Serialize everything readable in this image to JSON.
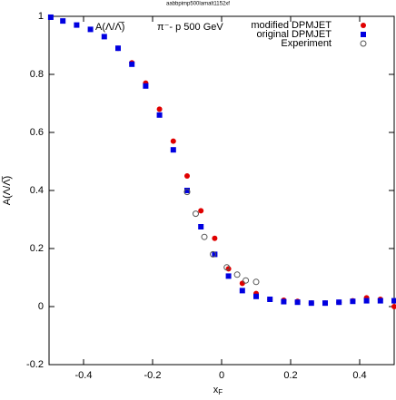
{
  "chart_data": {
    "type": "scatter",
    "title": "aabbpimp500lamalt1152xf",
    "annotations": [
      "A(Λ/Λ̅)",
      "π⁻- p 500 GeV"
    ],
    "xlabel": {
      "main": "x",
      "sub": "F"
    },
    "ylabel": "A(Λ/Λ̅)",
    "xlim": [
      -0.5,
      0.5
    ],
    "ylim": [
      -0.2,
      1
    ],
    "xticks": [
      -0.4,
      -0.2,
      0,
      0.2,
      0.4
    ],
    "yticks": [
      -0.2,
      0,
      0.2,
      0.4,
      0.6,
      0.8,
      1
    ],
    "grid": false,
    "legend": "top-right",
    "series": [
      {
        "name": "modified DPMJET",
        "color": "#e00000",
        "marker": "circle",
        "x": [
          -0.3,
          -0.26,
          -0.22,
          -0.18,
          -0.14,
          -0.1,
          -0.06,
          -0.02,
          0.02,
          0.06,
          0.1,
          0.14,
          0.18,
          0.22,
          0.26,
          0.3,
          0.34,
          0.38,
          0.42,
          0.46,
          0.5
        ],
        "values": [
          0.89,
          0.84,
          0.77,
          0.68,
          0.57,
          0.45,
          0.33,
          0.235,
          0.13,
          0.08,
          0.045,
          0.025,
          0.022,
          0.018,
          0.012,
          0.012,
          0.015,
          0.02,
          0.03,
          0.025,
          0.0
        ]
      },
      {
        "name": "original DPMJET",
        "color": "#0000e0",
        "marker": "square",
        "x": [
          -0.495,
          -0.46,
          -0.42,
          -0.38,
          -0.34,
          -0.3,
          -0.26,
          -0.22,
          -0.18,
          -0.14,
          -0.1,
          -0.06,
          -0.02,
          0.02,
          0.06,
          0.1,
          0.14,
          0.18,
          0.22,
          0.26,
          0.3,
          0.34,
          0.38,
          0.42,
          0.46,
          0.5
        ],
        "values": [
          0.997,
          0.984,
          0.97,
          0.955,
          0.93,
          0.89,
          0.835,
          0.76,
          0.66,
          0.54,
          0.4,
          0.275,
          0.18,
          0.105,
          0.055,
          0.035,
          0.025,
          0.017,
          0.015,
          0.012,
          0.012,
          0.015,
          0.018,
          0.02,
          0.02,
          0.02
        ]
      },
      {
        "name": "Experiment",
        "color": "#555555",
        "marker": "open-circle",
        "x": [
          -0.1,
          -0.075,
          -0.05,
          -0.025,
          0.015,
          0.045,
          0.07,
          0.1
        ],
        "values": [
          0.395,
          0.32,
          0.24,
          0.18,
          0.135,
          0.11,
          0.09,
          0.085
        ]
      }
    ]
  }
}
